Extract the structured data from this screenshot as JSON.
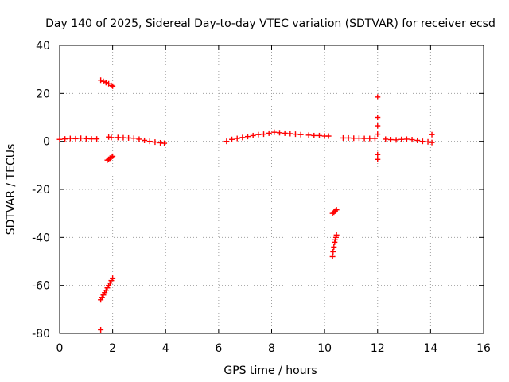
{
  "chart_data": {
    "type": "scatter",
    "title": "Day 140 of 2025, Sidereal Day-to-day VTEC variation (SDTVAR) for receiver ecsd",
    "xlabel": "GPS time / hours",
    "ylabel": "SDTVAR / TECUs",
    "xlim": [
      0,
      16
    ],
    "ylim": [
      -80,
      40
    ],
    "xticks": [
      0,
      2,
      4,
      6,
      8,
      10,
      12,
      14,
      16
    ],
    "yticks": [
      -80,
      -60,
      -40,
      -20,
      0,
      20,
      40
    ],
    "grid": true,
    "marker": "+",
    "color": "#ff0000",
    "series": [
      {
        "name": "SDTVAR",
        "segments": [
          {
            "x": [
              0.0,
              0.2,
              0.4,
              0.6,
              0.8,
              1.0,
              1.2,
              1.4
            ],
            "y": [
              0.8,
              1.0,
              1.2,
              1.1,
              1.3,
              1.1,
              1.0,
              1.0
            ]
          },
          {
            "x": [
              1.55,
              1.65,
              1.75,
              1.85,
              1.95,
              2.0
            ],
            "y": [
              25.5,
              25.0,
              24.5,
              24.0,
              23.3,
              23.0
            ]
          },
          {
            "x": [
              1.8,
              1.85,
              1.9,
              1.95,
              2.0
            ],
            "y": [
              -7.8,
              -7.5,
              -7.0,
              -6.6,
              -6.2
            ]
          },
          {
            "x": [
              1.55,
              1.6,
              1.65,
              1.7,
              1.75,
              1.8,
              1.85,
              1.9,
              1.95,
              2.0
            ],
            "y": [
              -66.0,
              -65.0,
              -64.0,
              -63.0,
              -62.0,
              -61.0,
              -60.0,
              -59.0,
              -58.0,
              -57.0
            ]
          },
          {
            "x": [
              1.55
            ],
            "y": [
              -78.5
            ]
          },
          {
            "x": [
              1.85,
              1.95
            ],
            "y": [
              1.8,
              1.6
            ]
          },
          {
            "x": [
              2.2,
              2.4,
              2.6,
              2.8,
              3.0,
              3.2,
              3.4,
              3.6,
              3.8,
              3.95
            ],
            "y": [
              1.6,
              1.5,
              1.4,
              1.3,
              0.9,
              0.4,
              0.0,
              -0.3,
              -0.6,
              -0.8
            ]
          },
          {
            "x": [
              6.3,
              6.5,
              6.7,
              6.9,
              7.1,
              7.3,
              7.5,
              7.7,
              7.9,
              8.1,
              8.3,
              8.5,
              8.7,
              8.9,
              9.1
            ],
            "y": [
              0.0,
              0.8,
              1.2,
              1.6,
              2.0,
              2.4,
              2.8,
              3.0,
              3.4,
              3.8,
              3.6,
              3.4,
              3.2,
              3.0,
              2.8
            ]
          },
          {
            "x": [
              9.4,
              9.6,
              9.8,
              10.0,
              10.15
            ],
            "y": [
              2.6,
              2.4,
              2.4,
              2.2,
              2.2
            ]
          },
          {
            "x": [
              10.3,
              10.35,
              10.4,
              10.45
            ],
            "y": [
              -30.0,
              -29.5,
              -29.0,
              -28.5
            ]
          },
          {
            "x": [
              10.3,
              10.32,
              10.35,
              10.38,
              10.4,
              10.43,
              10.45
            ],
            "y": [
              -48.0,
              -46.0,
              -44.0,
              -42.0,
              -41.0,
              -40.0,
              -39.0
            ]
          },
          {
            "x": [
              10.7,
              10.9,
              11.1,
              11.3,
              11.5,
              11.7,
              11.9
            ],
            "y": [
              1.4,
              1.4,
              1.3,
              1.3,
              1.2,
              1.2,
              1.2
            ]
          },
          {
            "x": [
              12.0,
              12.0,
              12.0,
              12.0,
              12.0,
              12.0
            ],
            "y": [
              18.5,
              10.0,
              6.5,
              3.0,
              -5.5,
              -7.5
            ]
          },
          {
            "x": [
              12.3,
              12.5,
              12.7,
              12.9,
              13.1,
              13.3,
              13.5,
              13.7,
              13.9,
              14.05
            ],
            "y": [
              0.9,
              0.7,
              0.6,
              0.8,
              0.9,
              0.7,
              0.4,
              0.0,
              -0.2,
              -0.5
            ]
          },
          {
            "x": [
              14.05
            ],
            "y": [
              2.8
            ]
          }
        ]
      }
    ]
  }
}
